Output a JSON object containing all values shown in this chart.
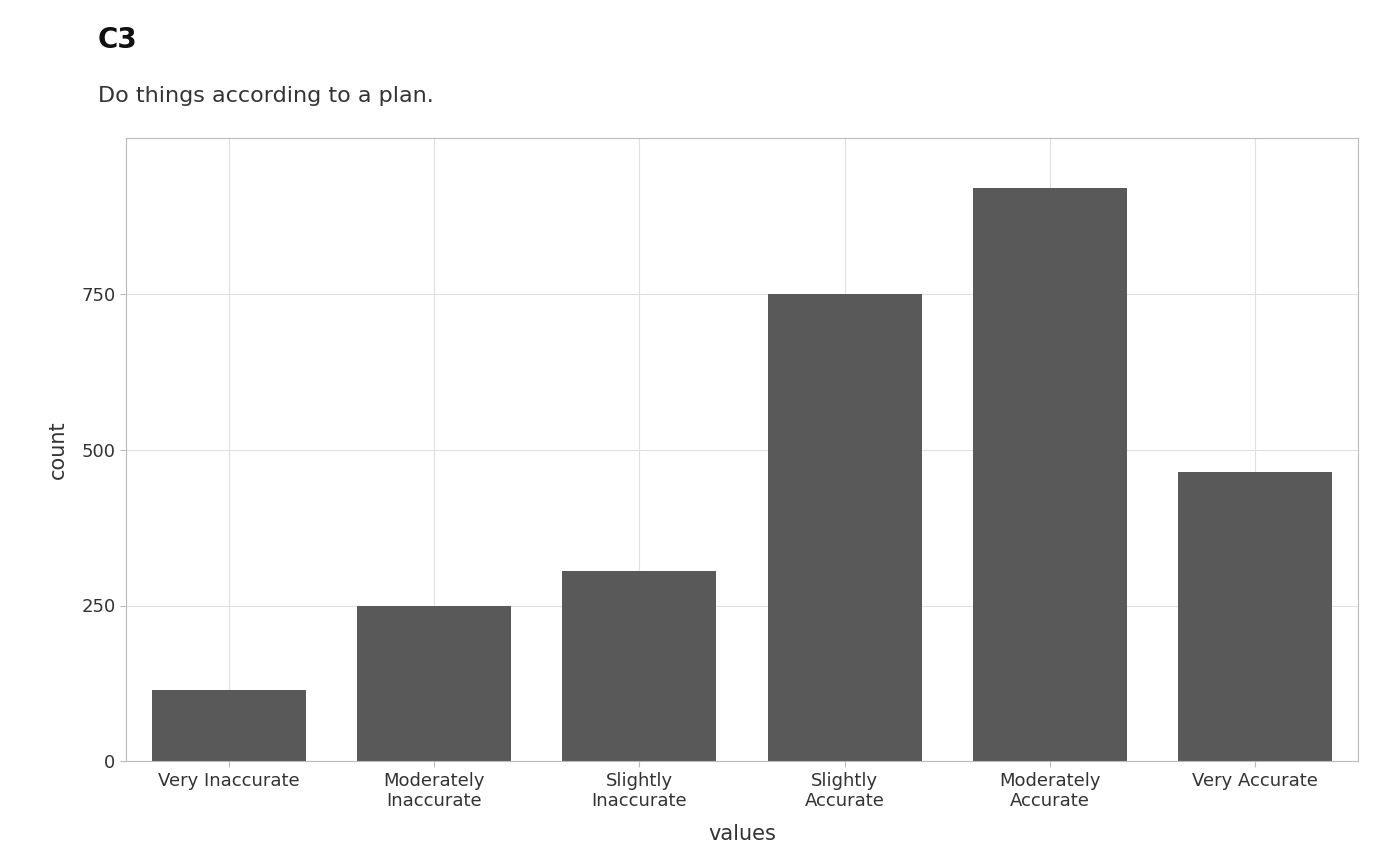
{
  "title": "C3",
  "subtitle": "Do things according to a plan.",
  "categories": [
    "Very Inaccurate",
    "Moderately\nInaccurate",
    "Slightly\nInaccurate",
    "Slightly\nAccurate",
    "Moderately\nAccurate",
    "Very Accurate"
  ],
  "values": [
    115,
    250,
    305,
    750,
    920,
    465
  ],
  "bar_color": "#595959",
  "xlabel": "values",
  "ylabel": "count",
  "ylim": [
    0,
    1000
  ],
  "yticks": [
    0,
    250,
    500,
    750
  ],
  "background_color": "#ffffff",
  "grid_color": "#e0e0e0",
  "title_fontsize": 20,
  "subtitle_fontsize": 16,
  "axis_label_fontsize": 15,
  "tick_fontsize": 13,
  "bar_width": 0.75
}
